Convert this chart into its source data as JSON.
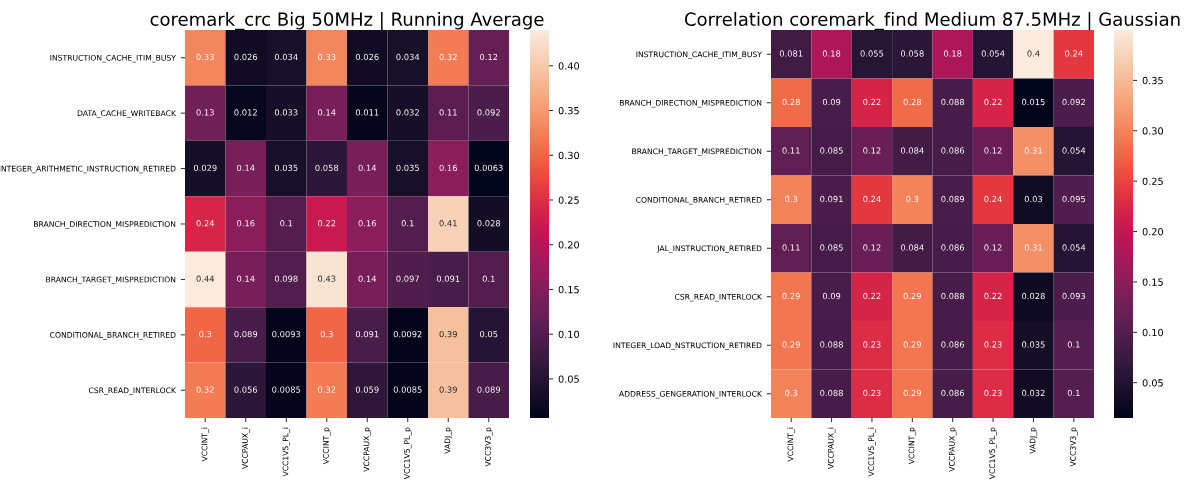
{
  "chart_data": [
    {
      "type": "heatmap",
      "title": "coremark_crc Big 50MHz | Running Average",
      "categories": [
        "VCCINT_i",
        "VCCPAUX_i",
        "VCC1V5_PL_i",
        "VCCINT_p",
        "VCCPAUX_p",
        "VCC1V5_PL_p",
        "VADJ_p",
        "VCC3V3_p"
      ],
      "y_categories": [
        "INSTRUCTION_CACHE_ITIM_BUSY",
        "DATA_CACHE_WRITEBACK",
        "INTEGER_ARITHMETIC_INSTRUCTION_RETIRED",
        "BRANCH_DIRECTION_MISPREDICTION",
        "BRANCH_TARGET_MISPREDICTION",
        "CONDITIONAL_BRANCH_RETIRED",
        "CSR_READ_INTERLOCK"
      ],
      "cells": [
        [
          0.33,
          0.026,
          0.034,
          0.33,
          0.026,
          0.034,
          0.32,
          0.12
        ],
        [
          0.13,
          0.012,
          0.033,
          0.14,
          0.011,
          0.032,
          0.11,
          0.092
        ],
        [
          0.029,
          0.14,
          0.035,
          0.058,
          0.14,
          0.035,
          0.16,
          0.0063
        ],
        [
          0.24,
          0.16,
          0.1,
          0.22,
          0.16,
          0.1,
          0.41,
          0.028
        ],
        [
          0.44,
          0.14,
          0.098,
          0.43,
          0.14,
          0.097,
          0.091,
          0.1
        ],
        [
          0.3,
          0.089,
          0.0093,
          0.3,
          0.091,
          0.0092,
          0.39,
          0.05
        ],
        [
          0.32,
          0.056,
          0.0085,
          0.32,
          0.059,
          0.0085,
          0.39,
          0.089
        ]
      ],
      "clim": [
        0.0063,
        0.44
      ],
      "cticks": [
        0.05,
        {
          "value": 0.1,
          "label": "0.10"
        },
        0.15,
        {
          "value": 0.2,
          "label": "0.20"
        },
        0.25,
        {
          "value": 0.3,
          "label": "0.30"
        },
        0.35,
        {
          "value": 0.4,
          "label": "0.40"
        }
      ],
      "data_labels": true
    },
    {
      "type": "heatmap",
      "title": "Correlation coremark_find Medium 87.5MHz | Gaussian",
      "categories": [
        "VCCINT_i",
        "VCCPAUX_i",
        "VCC1V5_PL_i",
        "VCCINT_p",
        "VCCPAUX_p",
        "VCC1V5_PL_p",
        "VADJ_p",
        "VCC3V3_p"
      ],
      "y_categories": [
        "INSTRUCTION_CACHE_ITIM_BUSY",
        "BRANCH_DIRECTION_MISPREDICTION",
        "BRANCH_TARGET_MISPREDICTION",
        "CONDITIONAL_BRANCH_RETIRED",
        "JAL_INSTRUCTION_RETIRED",
        "CSR_READ_INTERLOCK",
        "INTEGER_LOAD_NSTRUCTION_RETIRED",
        "ADDRESS_GENGERATION_INTERLOCK"
      ],
      "cells": [
        [
          0.081,
          0.18,
          0.055,
          0.058,
          0.18,
          0.054,
          0.4,
          0.24
        ],
        [
          0.28,
          0.09,
          0.22,
          0.28,
          0.088,
          0.22,
          0.015,
          0.092
        ],
        [
          0.11,
          0.085,
          0.12,
          0.084,
          0.086,
          0.12,
          0.31,
          0.054
        ],
        [
          0.3,
          0.091,
          0.24,
          0.3,
          0.089,
          0.24,
          0.03,
          0.095
        ],
        [
          0.11,
          0.085,
          0.12,
          0.084,
          0.086,
          0.12,
          0.31,
          0.054
        ],
        [
          0.29,
          0.09,
          0.22,
          0.29,
          0.088,
          0.22,
          0.028,
          0.093
        ],
        [
          0.29,
          0.088,
          0.23,
          0.29,
          0.086,
          0.23,
          0.035,
          0.1
        ],
        [
          0.3,
          0.088,
          0.23,
          0.29,
          0.086,
          0.23,
          0.032,
          0.1
        ]
      ],
      "clim": [
        0.015,
        0.4
      ],
      "cticks": [
        0.05,
        {
          "value": 0.1,
          "label": "0.10"
        },
        0.15,
        {
          "value": 0.2,
          "label": "0.20"
        },
        0.25,
        {
          "value": 0.3,
          "label": "0.30"
        },
        0.35
      ],
      "data_labels": true
    }
  ]
}
